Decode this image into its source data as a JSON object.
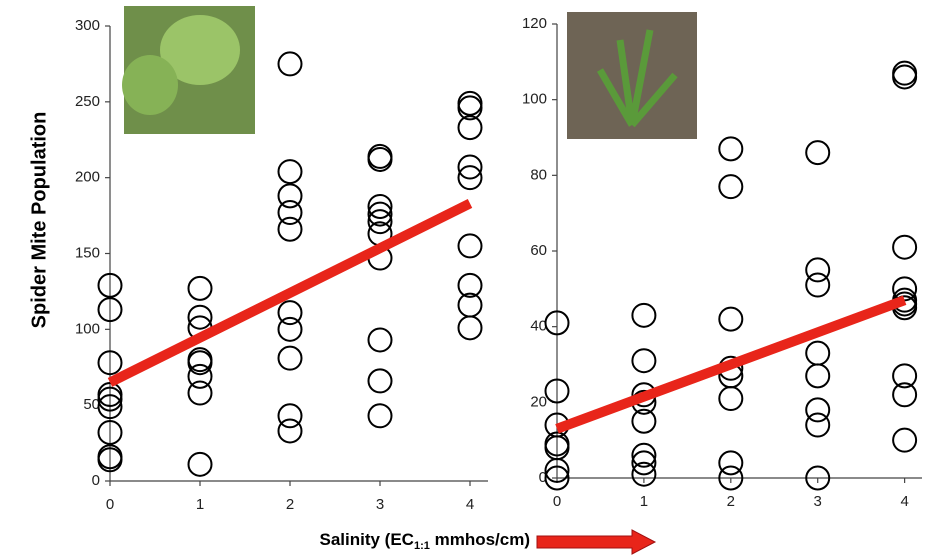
{
  "chart_data": [
    {
      "type": "scatter",
      "ylabel": "Spider Mite Population",
      "xlabel": [
        "Salinity (EC",
        "1:1",
        " mmhos/cm)"
      ],
      "xlim": [
        0,
        4.2
      ],
      "xticks": [
        0,
        1,
        2,
        3,
        4
      ],
      "ylim": [
        0,
        300
      ],
      "yticks": [
        0,
        50,
        100,
        150,
        200,
        250,
        300
      ],
      "series": [
        {
          "color": "#000000",
          "x": [
            0,
            0,
            0,
            0,
            0,
            0,
            0,
            0,
            0,
            1,
            1,
            1,
            1,
            1,
            1,
            1,
            1,
            2,
            2,
            2,
            2,
            2,
            2,
            2,
            2,
            2,
            2,
            3,
            3,
            3,
            3,
            3,
            3,
            3,
            3,
            3,
            3,
            4,
            4,
            4,
            4,
            4,
            4,
            4,
            4,
            4
          ],
          "values": [
            129,
            113,
            78,
            57,
            54,
            49,
            32,
            16,
            14,
            127,
            108,
            101,
            80,
            78,
            69,
            58,
            11,
            275,
            204,
            188,
            177,
            166,
            111,
            100,
            81,
            43,
            33,
            214,
            212,
            181,
            176,
            171,
            163,
            147,
            93,
            66,
            43,
            249,
            246,
            233,
            207,
            200,
            155,
            129,
            116,
            101
          ]
        },
        {
          "type": "line",
          "color": "#e8251a",
          "x": [
            0,
            4
          ],
          "values": [
            65,
            183
          ]
        }
      ]
    },
    {
      "type": "scatter",
      "xlim": [
        0,
        4.2
      ],
      "xticks": [
        0,
        1,
        2,
        3,
        4
      ],
      "ylim": [
        0,
        120
      ],
      "yticks": [
        0,
        20,
        40,
        60,
        80,
        100,
        120
      ],
      "series": [
        {
          "color": "#000000",
          "x": [
            0,
            0,
            0,
            0,
            0,
            0,
            0,
            1,
            1,
            1,
            1,
            1,
            1,
            1,
            1,
            2,
            2,
            2,
            2,
            2,
            2,
            2,
            2,
            3,
            3,
            3,
            3,
            3,
            3,
            3,
            3,
            4,
            4,
            4,
            4,
            4,
            4,
            4,
            4,
            4,
            4
          ],
          "values": [
            41,
            23,
            14,
            9,
            8,
            2,
            0,
            43,
            31,
            22,
            20,
            15,
            6,
            4,
            1,
            87,
            77,
            42,
            29,
            27,
            21,
            4,
            0,
            86,
            55,
            51,
            33,
            27,
            18,
            14,
            0,
            107,
            106,
            61,
            50,
            47,
            46,
            45,
            27,
            22,
            10
          ]
        },
        {
          "type": "line",
          "color": "#e8251a",
          "x": [
            0,
            4
          ],
          "values": [
            13,
            47
          ]
        }
      ]
    }
  ]
}
